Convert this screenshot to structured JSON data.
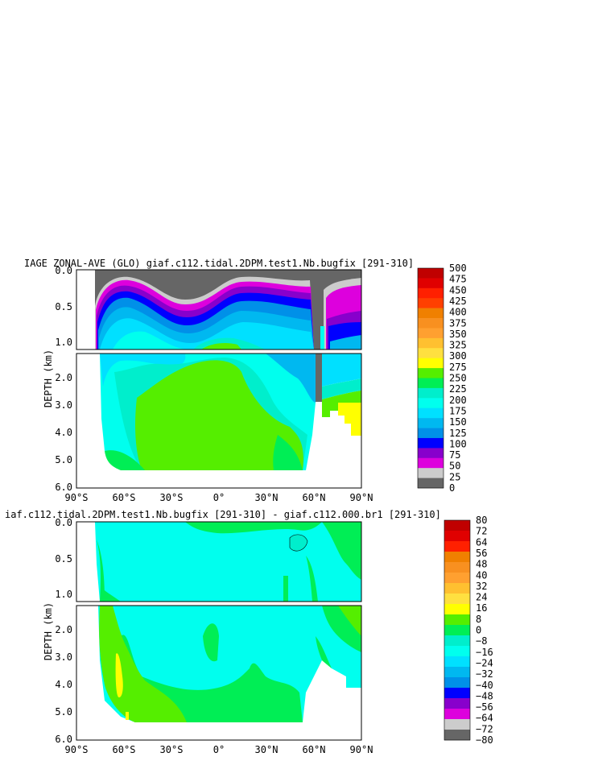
{
  "chart_data": [
    {
      "type": "heatmap",
      "title": "IAGE ZONAL-AVE (GLO) giaf.c112.tidal.2DPM.test1.Nb.bugfix [291-310]",
      "xlabel": "",
      "ylabel": "DEPTH (km)",
      "xlim": [
        -90,
        90
      ],
      "ylim": [
        6.0,
        0.0
      ],
      "y_axis_break_km": 1.1,
      "x_ticks": [
        "90°S",
        "60°S",
        "30°S",
        "0°",
        "30°N",
        "60°N",
        "90°N"
      ],
      "y_ticks_upper": [
        "0.0",
        "0.5",
        "1.0"
      ],
      "y_ticks_lower": [
        "2.0",
        "3.0",
        "4.0",
        "5.0",
        "6.0"
      ],
      "colorbar_levels": [
        "500",
        "475",
        "450",
        "425",
        "400",
        "375",
        "350",
        "325",
        "300",
        "275",
        "250",
        "225",
        "200",
        "175",
        "150",
        "125",
        "100",
        "75",
        "50",
        "25",
        "0"
      ],
      "colorbar_colors": [
        "#c00000",
        "#e00000",
        "#ff2000",
        "#ff4000",
        "#f08000",
        "#f89020",
        "#ffa030",
        "#ffc030",
        "#ffe040",
        "#ffff00",
        "#55ee00",
        "#00ee55",
        "#00eecc",
        "#00ffee",
        "#00e0ff",
        "#00b8f0",
        "#0090e8",
        "#0000ff",
        "#8800cc",
        "#dd00dd",
        "#cccccc",
        "#666666"
      ]
    },
    {
      "type": "heatmap",
      "title": "iaf.c112.tidal.2DPM.test1.Nb.bugfix [291-310] - giaf.c112.000.br1 [291-310]",
      "xlabel": "",
      "ylabel": "DEPTH (km)",
      "xlim": [
        -90,
        90
      ],
      "ylim": [
        6.0,
        0.0
      ],
      "y_axis_break_km": 1.1,
      "x_ticks": [
        "90°S",
        "60°S",
        "30°S",
        "0°",
        "30°N",
        "60°N",
        "90°N"
      ],
      "y_ticks_upper": [
        "0.0",
        "0.5",
        "1.0"
      ],
      "y_ticks_lower": [
        "2.0",
        "3.0",
        "4.0",
        "5.0",
        "6.0"
      ],
      "colorbar_levels": [
        "80",
        "72",
        "64",
        "56",
        "48",
        "40",
        "32",
        "24",
        "16",
        "8",
        "0",
        "−8",
        "−16",
        "−24",
        "−32",
        "−40",
        "−48",
        "−56",
        "−64",
        "−72",
        "−80"
      ],
      "colorbar_colors": [
        "#c00000",
        "#e00000",
        "#ff2000",
        "#f08000",
        "#f89020",
        "#ffa030",
        "#ffc030",
        "#ffe040",
        "#ffff00",
        "#55ee00",
        "#00ee55",
        "#00eecc",
        "#00ffee",
        "#00e0ff",
        "#00b8f0",
        "#0090e8",
        "#0000ff",
        "#8800cc",
        "#dd00dd",
        "#cccccc",
        "#666666"
      ]
    }
  ]
}
